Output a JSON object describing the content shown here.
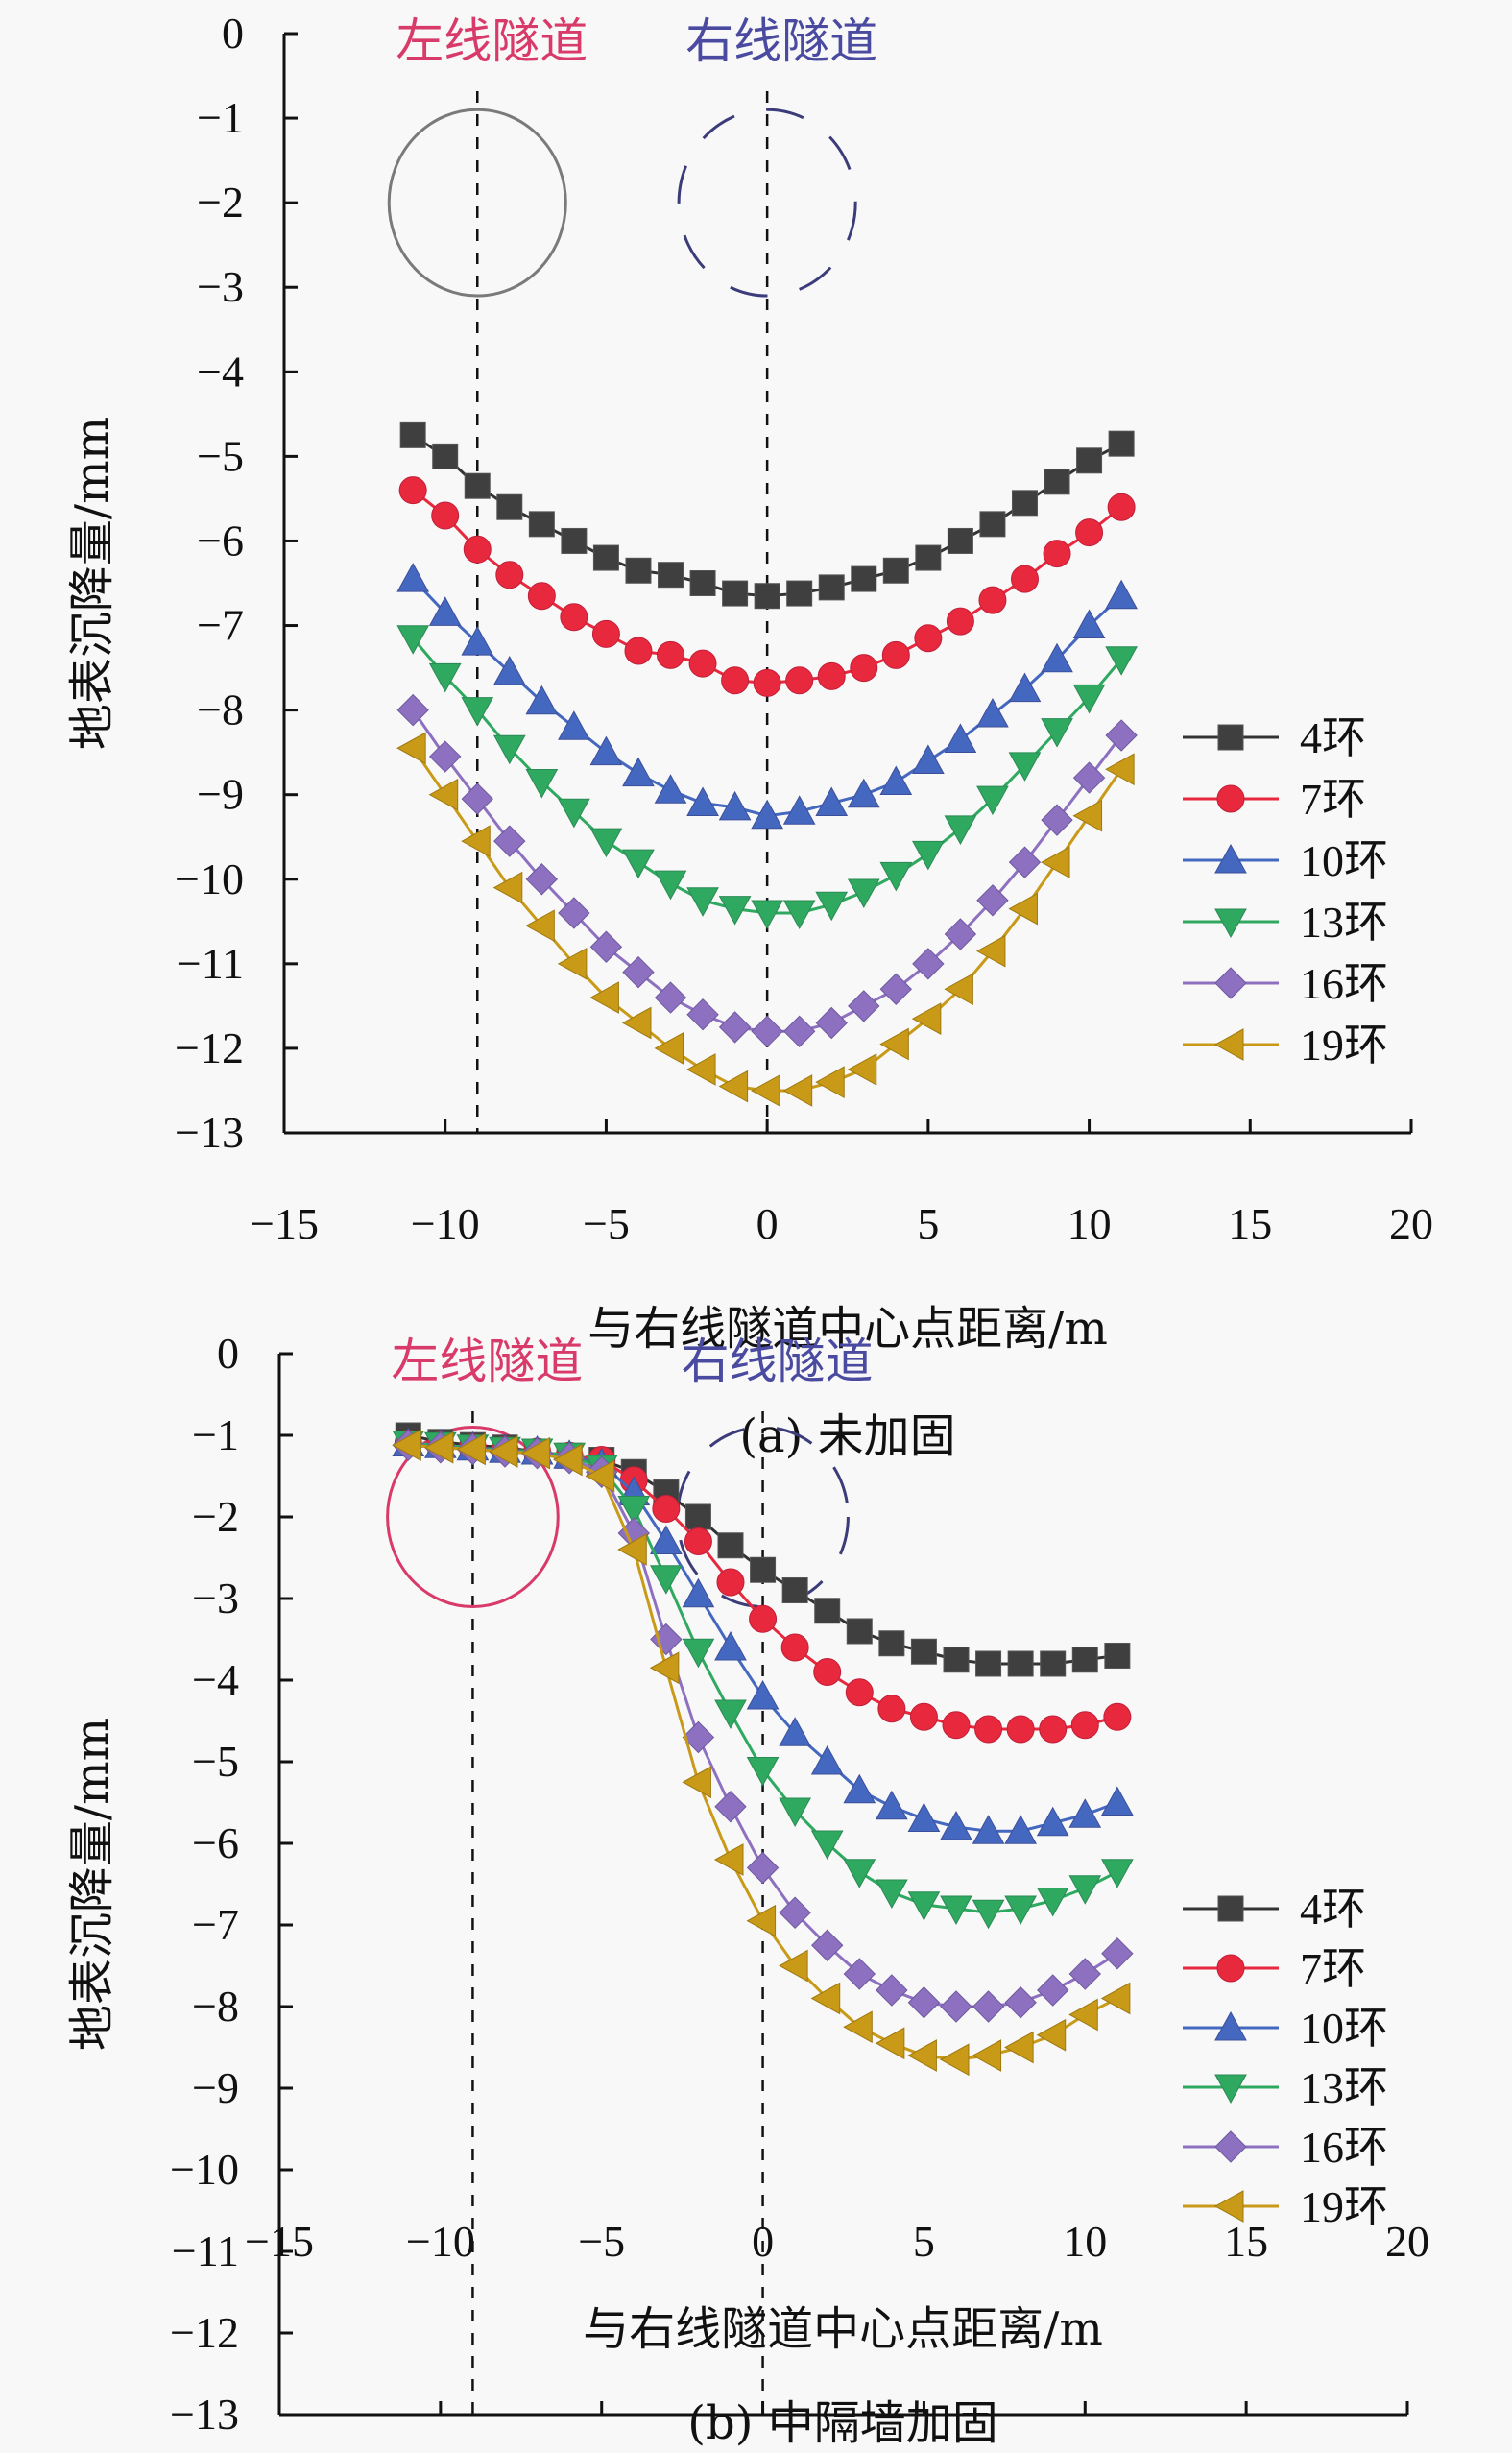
{
  "chart_data": [
    {
      "type": "line",
      "caption": "(a) 未加固",
      "xlabel": "与右线隧道中心点距离/m",
      "ylabel": "地表沉降量/mm",
      "xlim": [
        -15,
        20
      ],
      "ylim": [
        -13,
        0
      ],
      "xticks": [
        "−15",
        "−10",
        "−5",
        "0",
        "5",
        "10",
        "15",
        "20"
      ],
      "yticks": [
        "0",
        "−1",
        "−2",
        "−3",
        "−4",
        "−5",
        "−6",
        "−7",
        "−8",
        "−9",
        "−10",
        "−11",
        "−12",
        "−13"
      ],
      "grid": false,
      "legend_position": "right",
      "annotations": {
        "left_tunnel": {
          "label": "左线隧道",
          "center_x": -9,
          "center_y": -2,
          "style": "solid",
          "color": "#7a7a7a",
          "label_color": "#d83a6a"
        },
        "right_tunnel": {
          "label": "右线隧道",
          "center_x": 0,
          "center_y": -2,
          "style": "dashed",
          "color": "#3c3c7a",
          "label_color": "#4a4aa0"
        }
      },
      "x": [
        -11,
        -10,
        -9,
        -8,
        -7,
        -6,
        -5,
        -4,
        -3,
        -2,
        -1,
        0,
        1,
        2,
        3,
        4,
        5,
        6,
        7,
        8,
        9,
        10,
        11
      ],
      "series": [
        {
          "name": "4环",
          "marker": "square",
          "color": "#3f3f3f",
          "values": [
            -4.75,
            -5.0,
            -5.35,
            -5.6,
            -5.8,
            -6.0,
            -6.2,
            -6.35,
            -6.4,
            -6.5,
            -6.62,
            -6.65,
            -6.62,
            -6.55,
            -6.45,
            -6.35,
            -6.2,
            -6.0,
            -5.8,
            -5.55,
            -5.3,
            -5.05,
            -4.85
          ]
        },
        {
          "name": "7环",
          "marker": "circle",
          "color": "#e8283c",
          "values": [
            -5.4,
            -5.7,
            -6.1,
            -6.4,
            -6.65,
            -6.9,
            -7.1,
            -7.3,
            -7.35,
            -7.45,
            -7.65,
            -7.68,
            -7.65,
            -7.6,
            -7.5,
            -7.35,
            -7.15,
            -6.95,
            -6.7,
            -6.45,
            -6.15,
            -5.9,
            -5.6
          ]
        },
        {
          "name": "10环",
          "marker": "triangle-up",
          "color": "#4468c0",
          "values": [
            -6.45,
            -6.85,
            -7.2,
            -7.55,
            -7.9,
            -8.2,
            -8.5,
            -8.75,
            -8.95,
            -9.1,
            -9.15,
            -9.25,
            -9.2,
            -9.1,
            -9.0,
            -8.85,
            -8.6,
            -8.35,
            -8.05,
            -7.75,
            -7.4,
            -7.0,
            -6.65
          ]
        },
        {
          "name": "13环",
          "marker": "triangle-down",
          "color": "#2fa860",
          "values": [
            -7.15,
            -7.6,
            -8.0,
            -8.45,
            -8.85,
            -9.2,
            -9.55,
            -9.8,
            -10.05,
            -10.25,
            -10.35,
            -10.4,
            -10.4,
            -10.3,
            -10.15,
            -9.95,
            -9.7,
            -9.4,
            -9.05,
            -8.65,
            -8.25,
            -7.85,
            -7.4
          ]
        },
        {
          "name": "16环",
          "marker": "diamond",
          "color": "#8e70c0",
          "values": [
            -8.0,
            -8.55,
            -9.05,
            -9.55,
            -10.0,
            -10.4,
            -10.8,
            -11.1,
            -11.4,
            -11.6,
            -11.75,
            -11.8,
            -11.8,
            -11.7,
            -11.5,
            -11.3,
            -11.0,
            -10.65,
            -10.25,
            -9.8,
            -9.3,
            -8.8,
            -8.3
          ]
        },
        {
          "name": "19环",
          "marker": "triangle-left",
          "color": "#c89a18",
          "values": [
            -8.45,
            -9.0,
            -9.55,
            -10.1,
            -10.55,
            -11.0,
            -11.4,
            -11.7,
            -12.0,
            -12.25,
            -12.45,
            -12.5,
            -12.5,
            -12.4,
            -12.25,
            -11.95,
            -11.65,
            -11.3,
            -10.85,
            -10.35,
            -9.8,
            -9.25,
            -8.7
          ]
        }
      ]
    },
    {
      "type": "line",
      "caption": "(b) 中隔墙加固",
      "xlabel": "与右线隧道中心点距离/m",
      "ylabel": "地表沉降量/mm",
      "xlim": [
        -15,
        20
      ],
      "ylim": [
        -13,
        0
      ],
      "xticks": [
        "−15",
        "−10",
        "−5",
        "0",
        "5",
        "10",
        "15",
        "20"
      ],
      "yticks": [
        "0",
        "−1",
        "−2",
        "−3",
        "−4",
        "−5",
        "−6",
        "−7",
        "−8",
        "−9",
        "−10",
        "−11",
        "−12",
        "−13"
      ],
      "grid": false,
      "legend_position": "right",
      "annotations": {
        "left_tunnel": {
          "label": "左线隧道",
          "center_x": -9,
          "center_y": -2,
          "style": "solid",
          "color": "#d83a6a",
          "label_color": "#d83a6a"
        },
        "right_tunnel": {
          "label": "右线隧道",
          "center_x": 0,
          "center_y": -2,
          "style": "dashed",
          "color": "#3c3c7a",
          "label_color": "#4a4aa0"
        }
      },
      "x": [
        -11,
        -10,
        -9,
        -8,
        -7,
        -6,
        -5,
        -4,
        -3,
        -2,
        -1,
        0,
        1,
        2,
        3,
        4,
        5,
        6,
        7,
        8,
        9,
        10,
        11
      ],
      "series": [
        {
          "name": "4环",
          "marker": "square",
          "color": "#3f3f3f",
          "values": [
            -1.0,
            -1.08,
            -1.12,
            -1.15,
            -1.2,
            -1.25,
            -1.3,
            -1.45,
            -1.7,
            -2.0,
            -2.35,
            -2.65,
            -2.9,
            -3.15,
            -3.4,
            -3.55,
            -3.65,
            -3.75,
            -3.8,
            -3.8,
            -3.8,
            -3.75,
            -3.7
          ]
        },
        {
          "name": "7环",
          "marker": "circle",
          "color": "#e8283c",
          "values": [
            -1.1,
            -1.12,
            -1.15,
            -1.18,
            -1.2,
            -1.25,
            -1.3,
            -1.55,
            -1.9,
            -2.3,
            -2.8,
            -3.25,
            -3.6,
            -3.9,
            -4.15,
            -4.35,
            -4.45,
            -4.55,
            -4.6,
            -4.6,
            -4.6,
            -4.55,
            -4.45
          ]
        },
        {
          "name": "10环",
          "marker": "triangle-up",
          "color": "#4468c0",
          "values": [
            -1.1,
            -1.12,
            -1.15,
            -1.18,
            -1.2,
            -1.25,
            -1.35,
            -1.7,
            -2.3,
            -2.95,
            -3.6,
            -4.2,
            -4.65,
            -5.0,
            -5.35,
            -5.55,
            -5.7,
            -5.8,
            -5.85,
            -5.85,
            -5.75,
            -5.65,
            -5.5
          ]
        },
        {
          "name": "13环",
          "marker": "triangle-down",
          "color": "#2fa860",
          "values": [
            -1.1,
            -1.12,
            -1.15,
            -1.18,
            -1.2,
            -1.25,
            -1.4,
            -1.9,
            -2.75,
            -3.65,
            -4.4,
            -5.1,
            -5.6,
            -6.0,
            -6.35,
            -6.6,
            -6.75,
            -6.8,
            -6.85,
            -6.8,
            -6.7,
            -6.55,
            -6.35
          ]
        },
        {
          "name": "16环",
          "marker": "diamond",
          "color": "#8e70c0",
          "values": [
            -1.12,
            -1.15,
            -1.17,
            -1.2,
            -1.22,
            -1.28,
            -1.45,
            -2.2,
            -3.5,
            -4.7,
            -5.55,
            -6.3,
            -6.85,
            -7.25,
            -7.6,
            -7.8,
            -7.95,
            -8.0,
            -8.0,
            -7.95,
            -7.8,
            -7.6,
            -7.35
          ]
        },
        {
          "name": "19环",
          "marker": "triangle-left",
          "color": "#c89a18",
          "values": [
            -1.12,
            -1.15,
            -1.17,
            -1.2,
            -1.22,
            -1.3,
            -1.5,
            -2.4,
            -3.85,
            -5.25,
            -6.2,
            -6.95,
            -7.5,
            -7.9,
            -8.25,
            -8.45,
            -8.6,
            -8.65,
            -8.6,
            -8.5,
            -8.35,
            -8.1,
            -7.9
          ]
        }
      ]
    }
  ]
}
